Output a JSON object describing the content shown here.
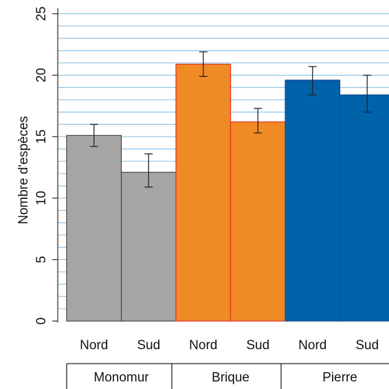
{
  "chart_data": {
    "type": "bar",
    "ylabel": "Nombre d'espèces",
    "ylim": [
      0,
      25
    ],
    "yticks": [
      0,
      5,
      10,
      15,
      20,
      25
    ],
    "grid": true,
    "groups": [
      {
        "name": "Monomur",
        "color": "#a6a6a6",
        "edge": "#444444",
        "bars": [
          {
            "category": "Nord",
            "value": 15.1,
            "err_low": 14.2,
            "err_high": 16.0
          },
          {
            "category": "Sud",
            "value": 12.1,
            "err_low": 10.9,
            "err_high": 13.6
          }
        ]
      },
      {
        "name": "Brique",
        "color": "#f08a24",
        "edge": "#e0302a",
        "bars": [
          {
            "category": "Nord",
            "value": 20.9,
            "err_low": 19.9,
            "err_high": 21.9
          },
          {
            "category": "Sud",
            "value": 16.2,
            "err_low": 15.3,
            "err_high": 17.3
          }
        ]
      },
      {
        "name": "Pierre",
        "color": "#0062a8",
        "edge": "#1a4a8a",
        "bars": [
          {
            "category": "Nord",
            "value": 19.6,
            "err_low": 18.4,
            "err_high": 20.7
          },
          {
            "category": "Sud",
            "value": 18.4,
            "err_low": 17.0,
            "err_high": 20.0
          }
        ]
      }
    ]
  }
}
